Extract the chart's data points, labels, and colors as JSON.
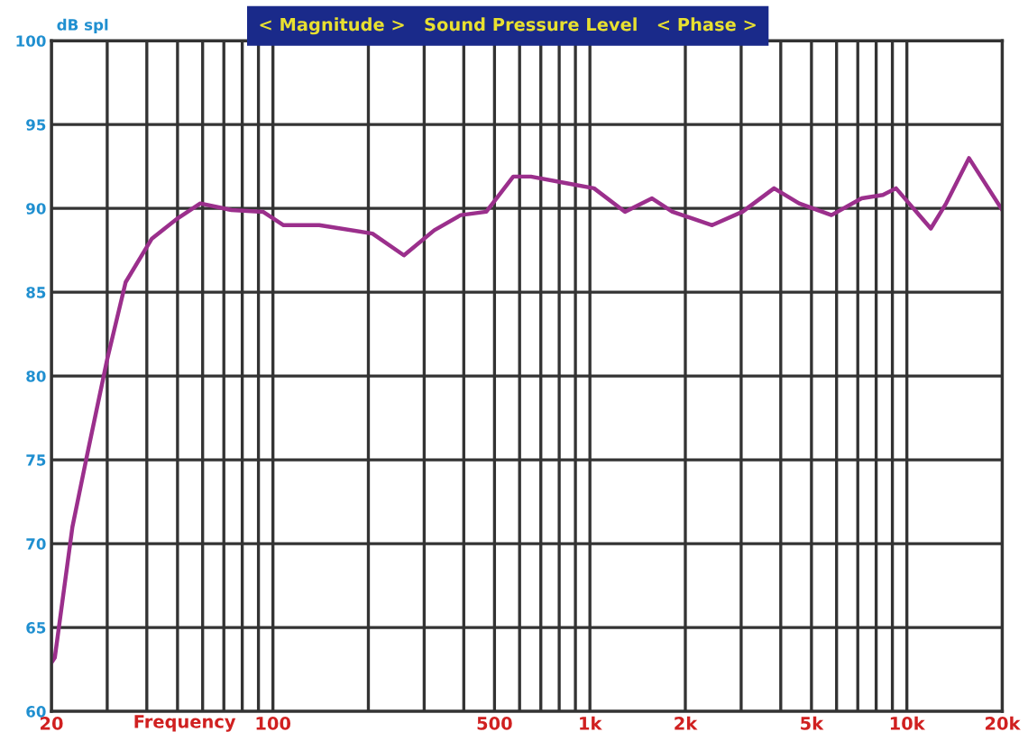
{
  "chart_data": {
    "type": "line",
    "title": "< Magnitude >   Sound Pressure Level   < Phase >",
    "ylabel": "dB spl",
    "xlabel": "Frequency",
    "log": "x",
    "grid": true,
    "marker": "none",
    "line_style": "solid",
    "x": [
      20,
      20.5,
      23.3,
      25.8,
      30,
      34.3,
      41.5,
      50,
      59,
      74,
      93,
      108,
      140,
      206,
      259,
      323,
      391,
      471,
      573,
      651,
      844,
      1030,
      1290,
      1570,
      1820,
      2430,
      3030,
      3810,
      4570,
      5780,
      7200,
      8400,
      9240,
      11900,
      13300,
      15700,
      20000
    ],
    "series": [
      {
        "color": "#9b2f8c",
        "values": [
          62.9,
          63.2,
          71.0,
          75.1,
          81.0,
          85.6,
          88.2,
          89.4,
          90.3,
          89.9,
          89.8,
          89.0,
          89.0,
          88.5,
          87.2,
          88.7,
          89.6,
          89.8,
          91.9,
          91.9,
          91.5,
          91.2,
          89.8,
          90.6,
          89.8,
          89.0,
          89.8,
          91.2,
          90.3,
          89.6,
          90.6,
          90.8,
          91.2,
          88.8,
          90.3,
          93.0,
          89.9
        ]
      }
    ],
    "xlim": [
      20,
      20000
    ],
    "ylim": [
      60,
      100
    ],
    "yticks": [
      60,
      65,
      70,
      75,
      80,
      85,
      90,
      95,
      100
    ],
    "xticks": [
      20,
      {
        "value": 30,
        "label": null
      },
      {
        "value": 40,
        "label": null
      },
      {
        "value": 50,
        "label": null
      },
      {
        "value": 60,
        "label": null
      },
      {
        "value": 70,
        "label": null
      },
      {
        "value": 80,
        "label": null
      },
      {
        "value": 90,
        "label": null
      },
      100,
      {
        "value": 200,
        "label": null
      },
      {
        "value": 300,
        "label": null
      },
      {
        "value": 400,
        "label": null
      },
      500,
      {
        "value": 600,
        "label": null
      },
      {
        "value": 700,
        "label": null
      },
      {
        "value": 800,
        "label": null
      },
      {
        "value": 900,
        "label": null
      },
      {
        "value": 1000,
        "label": "1k"
      },
      {
        "value": 2000,
        "label": "2k"
      },
      {
        "value": 3000,
        "label": null
      },
      {
        "value": 4000,
        "label": null
      },
      {
        "value": 5000,
        "label": "5k"
      },
      {
        "value": 6000,
        "label": null
      },
      {
        "value": 7000,
        "label": null
      },
      {
        "value": 8000,
        "label": null
      },
      {
        "value": 9000,
        "label": null
      },
      {
        "value": 10000,
        "label": "10k"
      },
      {
        "value": 20000,
        "label": "20k"
      }
    ]
  }
}
